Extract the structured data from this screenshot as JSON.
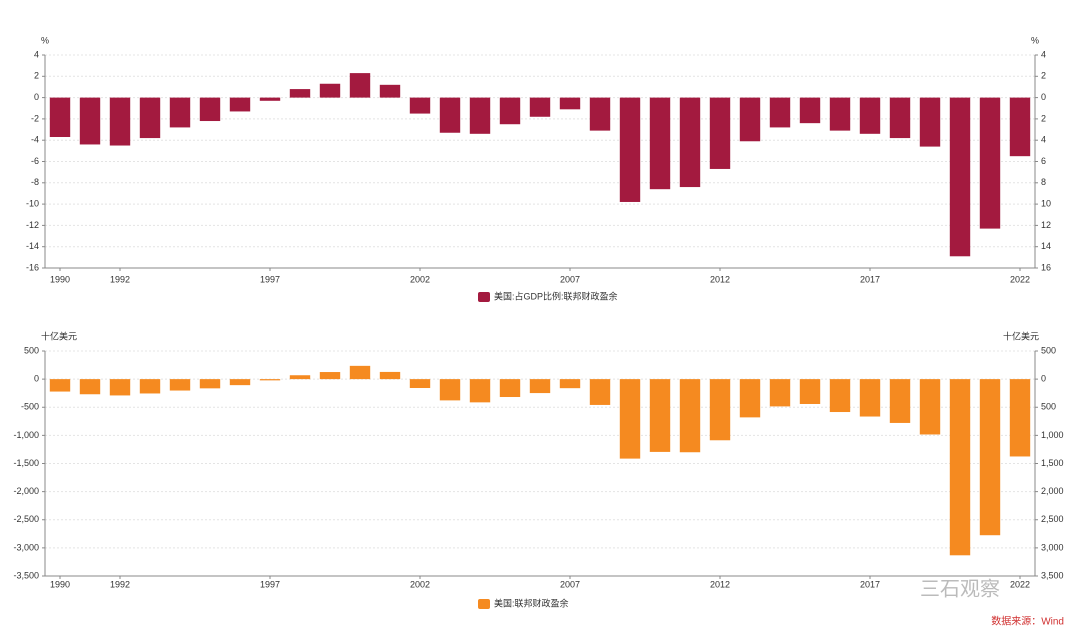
{
  "chart_data": [
    {
      "type": "bar",
      "y_label": "%",
      "y2_label": "%",
      "categories": [
        "1990",
        null,
        "1992",
        null,
        null,
        null,
        null,
        "1997",
        null,
        null,
        null,
        null,
        "2002",
        null,
        null,
        null,
        null,
        "2007",
        null,
        null,
        null,
        null,
        "2012",
        null,
        null,
        null,
        null,
        "2017",
        null,
        null,
        null,
        null,
        "2022"
      ],
      "series": [
        {
          "name": "美国:占GDP比例:联邦财政盈余",
          "color": "#a31a3f",
          "values": [
            -3.7,
            -4.4,
            -4.5,
            -3.8,
            -2.8,
            -2.2,
            -1.3,
            -0.3,
            0.8,
            1.3,
            2.3,
            1.2,
            -1.5,
            -3.3,
            -3.4,
            -2.5,
            -1.8,
            -1.1,
            -3.1,
            -9.8,
            -8.6,
            -8.4,
            -6.7,
            -4.1,
            -2.8,
            -2.4,
            -3.1,
            -3.4,
            -3.8,
            -4.6,
            -14.9,
            -12.3,
            -5.5
          ]
        }
      ],
      "ylim": [
        -16,
        4
      ],
      "yticks": [
        4,
        2,
        0,
        -2,
        -4,
        -6,
        -8,
        -10,
        -12,
        -14,
        -16
      ],
      "y2lim": [
        -16,
        4
      ],
      "y2ticks": [
        4,
        2,
        0,
        {
          "value": -2,
          "label": "2"
        },
        {
          "value": -4,
          "label": "4"
        },
        {
          "value": -6,
          "label": "6"
        },
        {
          "value": -8,
          "label": "8"
        },
        {
          "value": -10,
          "label": "10"
        },
        {
          "value": -12,
          "label": "12"
        },
        {
          "value": -14,
          "label": "14"
        },
        {
          "value": -16,
          "label": "16"
        }
      ],
      "grid": true
    },
    {
      "type": "bar",
      "y_label": "十亿美元",
      "y2_label": "十亿美元",
      "categories": [
        "1990",
        null,
        "1992",
        null,
        null,
        null,
        null,
        "1997",
        null,
        null,
        null,
        null,
        "2002",
        null,
        null,
        null,
        null,
        "2007",
        null,
        null,
        null,
        null,
        "2012",
        null,
        null,
        null,
        null,
        "2017",
        null,
        null,
        null,
        null,
        "2022"
      ],
      "series": [
        {
          "name": "美国:联邦财政盈余",
          "color": "#f58a20",
          "values": [
            -221,
            -269,
            -290,
            -255,
            -203,
            -164,
            -107,
            -22,
            69,
            126,
            236,
            128,
            -158,
            -378,
            -413,
            -318,
            -248,
            -161,
            -459,
            -1413,
            -1294,
            -1300,
            -1087,
            -680,
            -485,
            -442,
            -585,
            -665,
            -779,
            -984,
            -3132,
            -2775,
            -1375
          ]
        }
      ],
      "ylim": [
        -3500,
        500
      ],
      "yticks": [
        500,
        0,
        -500,
        {
          "value": -1000,
          "label": "-1,000"
        },
        {
          "value": -1500,
          "label": "-1,500"
        },
        {
          "value": -2000,
          "label": "-2,000"
        },
        {
          "value": -2500,
          "label": "-2,500"
        },
        {
          "value": -3000,
          "label": "-3,000"
        },
        {
          "value": -3500,
          "label": "-3,500"
        }
      ],
      "y2lim": [
        -3500,
        500
      ],
      "y2ticks": [
        500,
        0,
        {
          "value": -500,
          "label": "500"
        },
        {
          "value": -1000,
          "label": "1,000"
        },
        {
          "value": -1500,
          "label": "1,500"
        },
        {
          "value": -2000,
          "label": "2,000"
        },
        {
          "value": -2500,
          "label": "2,500"
        },
        {
          "value": -3000,
          "label": "3,000"
        },
        {
          "value": -3500,
          "label": "3,500"
        }
      ],
      "grid": true
    }
  ],
  "watermark": "三石观察",
  "source": "数据来源：Wind"
}
